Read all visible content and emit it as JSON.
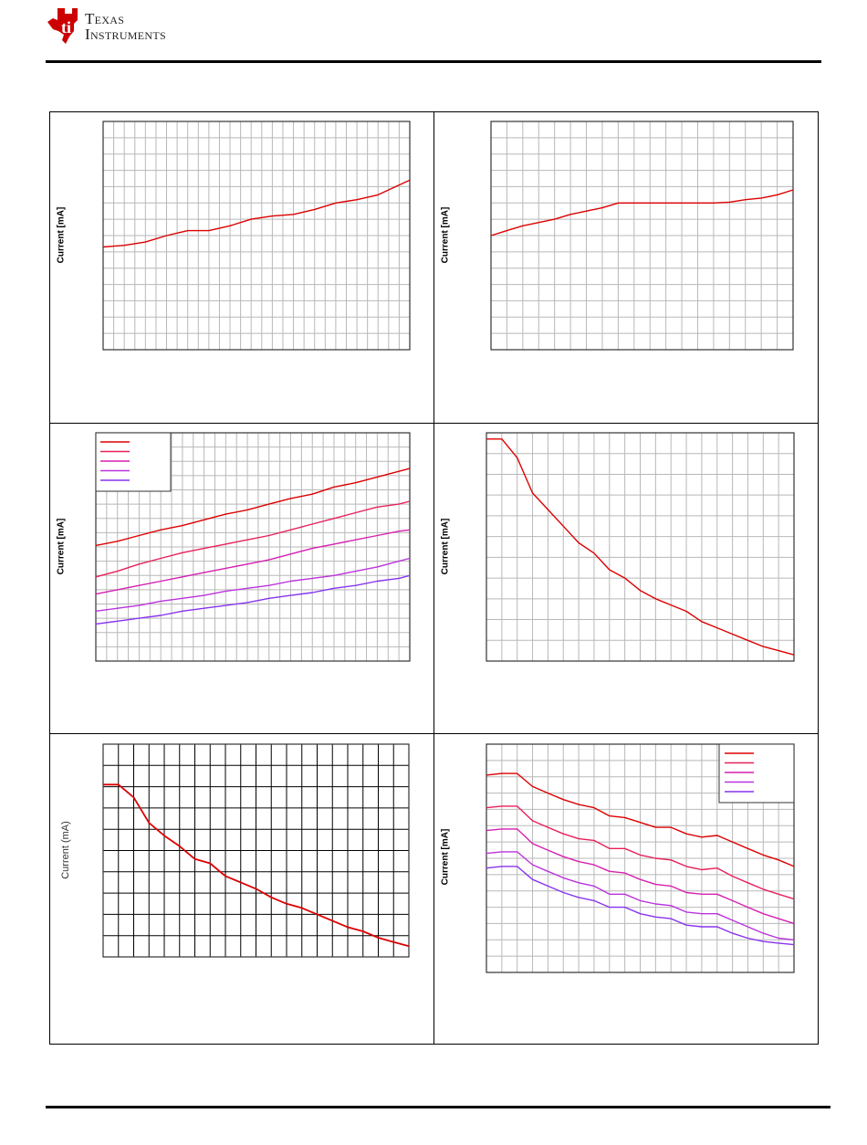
{
  "header": {
    "logo_line1": "Texas",
    "logo_line2": "Instruments",
    "logo_colors": {
      "brand": "#cc0000"
    }
  },
  "colors": {
    "series": [
      "#dd0000",
      "#e8205a",
      "#d61fb0",
      "#bb33dd",
      "#8833ee"
    ],
    "grid": "#b8b8b8",
    "grid_dark": "#000000"
  },
  "chart_data": [
    {
      "type": "line",
      "ylabel": "Current [mA]",
      "grid": true,
      "xlim": [
        0,
        29
      ],
      "ylim": [
        0,
        14
      ],
      "series": [
        {
          "x": [
            0,
            2,
            4,
            6,
            8,
            10,
            12,
            14,
            16,
            18,
            20,
            22,
            24,
            26,
            28,
            29
          ],
          "y": [
            6.3,
            6.4,
            6.6,
            7.0,
            7.3,
            7.3,
            7.6,
            8.0,
            8.2,
            8.3,
            8.6,
            9.0,
            9.2,
            9.5,
            10.1,
            10.4
          ]
        }
      ]
    },
    {
      "type": "line",
      "ylabel": "Current [mA]",
      "grid": true,
      "xlim": [
        0,
        19
      ],
      "ylim": [
        0,
        14
      ],
      "series": [
        {
          "x": [
            0,
            1,
            2,
            3,
            4,
            5,
            6,
            7,
            8,
            9,
            10,
            11,
            12,
            13,
            14,
            15,
            16,
            17,
            18,
            19
          ],
          "y": [
            7.0,
            7.3,
            7.6,
            7.8,
            8.0,
            8.3,
            8.5,
            8.7,
            9.0,
            9.0,
            9.0,
            9.0,
            9.0,
            9.0,
            9.0,
            9.05,
            9.2,
            9.3,
            9.5,
            9.8
          ]
        }
      ]
    },
    {
      "type": "line",
      "ylabel": "Current [mA]",
      "grid": true,
      "legend": "top-left",
      "xlim": [
        0,
        29
      ],
      "ylim": [
        0,
        16
      ],
      "series": [
        {
          "x": [
            0,
            2,
            4,
            6,
            8,
            10,
            12,
            14,
            16,
            18,
            20,
            22,
            24,
            26,
            28,
            29
          ],
          "y": [
            8.1,
            8.4,
            8.8,
            9.2,
            9.5,
            9.9,
            10.3,
            10.6,
            11.0,
            11.4,
            11.7,
            12.2,
            12.5,
            12.9,
            13.3,
            13.5
          ]
        },
        {
          "x": [
            0,
            2,
            4,
            6,
            8,
            10,
            12,
            14,
            16,
            18,
            20,
            22,
            24,
            26,
            28,
            29
          ],
          "y": [
            5.9,
            6.3,
            6.8,
            7.2,
            7.6,
            7.9,
            8.2,
            8.5,
            8.8,
            9.2,
            9.6,
            10.0,
            10.4,
            10.8,
            11.0,
            11.2
          ]
        },
        {
          "x": [
            0,
            2,
            4,
            6,
            8,
            10,
            12,
            14,
            16,
            18,
            20,
            22,
            24,
            26,
            28,
            29
          ],
          "y": [
            4.7,
            5.0,
            5.3,
            5.6,
            5.9,
            6.2,
            6.5,
            6.8,
            7.1,
            7.5,
            7.9,
            8.2,
            8.5,
            8.8,
            9.1,
            9.2
          ]
        },
        {
          "x": [
            0,
            2,
            4,
            6,
            8,
            10,
            12,
            14,
            16,
            18,
            20,
            22,
            24,
            26,
            28,
            29
          ],
          "y": [
            3.5,
            3.7,
            3.9,
            4.2,
            4.4,
            4.6,
            4.9,
            5.1,
            5.3,
            5.6,
            5.8,
            6.0,
            6.3,
            6.6,
            7.0,
            7.2
          ]
        },
        {
          "x": [
            0,
            2,
            4,
            6,
            8,
            10,
            12,
            14,
            16,
            18,
            20,
            22,
            24,
            26,
            28,
            29
          ],
          "y": [
            2.6,
            2.8,
            3.0,
            3.2,
            3.5,
            3.7,
            3.9,
            4.1,
            4.4,
            4.6,
            4.8,
            5.1,
            5.3,
            5.6,
            5.8,
            6.0
          ]
        }
      ]
    },
    {
      "type": "line",
      "ylabel": "Current [mA]",
      "grid": true,
      "xlim": [
        0,
        20
      ],
      "ylim": [
        0,
        11
      ],
      "series": [
        {
          "x": [
            0,
            1,
            2,
            3,
            4,
            5,
            6,
            7,
            8,
            9,
            10,
            11,
            12,
            13,
            14,
            15,
            16,
            17,
            18,
            19,
            20
          ],
          "y": [
            10.7,
            10.7,
            9.8,
            8.1,
            7.3,
            6.5,
            5.7,
            5.2,
            4.4,
            4.0,
            3.4,
            3.0,
            2.7,
            2.4,
            1.9,
            1.6,
            1.3,
            1.0,
            0.7,
            0.5,
            0.3
          ]
        }
      ]
    },
    {
      "type": "line",
      "ylabel": "Current (mA)",
      "grid": true,
      "xlim": [
        0,
        20
      ],
      "ylim": [
        0,
        10
      ],
      "series": [
        {
          "x": [
            0,
            1,
            2,
            3,
            4,
            5,
            6,
            7,
            8,
            9,
            10,
            11,
            12,
            13,
            14,
            15,
            16,
            17,
            18,
            19,
            20
          ],
          "y": [
            8.1,
            8.1,
            7.5,
            6.3,
            5.7,
            5.2,
            4.6,
            4.4,
            3.8,
            3.5,
            3.2,
            2.8,
            2.5,
            2.3,
            2.0,
            1.7,
            1.4,
            1.2,
            0.9,
            0.7,
            0.5
          ]
        }
      ]
    },
    {
      "type": "line",
      "ylabel": "Current [mA]",
      "grid": true,
      "legend": "top-right",
      "xlim": [
        0,
        20
      ],
      "ylim": [
        0,
        14
      ],
      "series": [
        {
          "x": [
            0,
            1,
            2,
            3,
            4,
            5,
            6,
            7,
            8,
            9,
            10,
            11,
            12,
            13,
            14,
            15,
            16,
            17,
            18,
            19,
            20
          ],
          "y": [
            12.1,
            12.2,
            12.2,
            11.4,
            11.0,
            10.6,
            10.3,
            10.1,
            9.6,
            9.5,
            9.2,
            8.9,
            8.9,
            8.5,
            8.3,
            8.4,
            8.0,
            7.6,
            7.2,
            6.9,
            6.5
          ]
        },
        {
          "x": [
            0,
            1,
            2,
            3,
            4,
            5,
            6,
            7,
            8,
            9,
            10,
            11,
            12,
            13,
            14,
            15,
            16,
            17,
            18,
            19,
            20
          ],
          "y": [
            10.1,
            10.2,
            10.2,
            9.3,
            8.9,
            8.5,
            8.2,
            8.1,
            7.6,
            7.6,
            7.2,
            7.0,
            6.9,
            6.5,
            6.3,
            6.4,
            5.9,
            5.5,
            5.1,
            4.8,
            4.5
          ]
        },
        {
          "x": [
            0,
            1,
            2,
            3,
            4,
            5,
            6,
            7,
            8,
            9,
            10,
            11,
            12,
            13,
            14,
            15,
            16,
            17,
            18,
            19,
            20
          ],
          "y": [
            8.7,
            8.8,
            8.8,
            7.9,
            7.5,
            7.1,
            6.8,
            6.6,
            6.2,
            6.1,
            5.7,
            5.4,
            5.3,
            4.9,
            4.8,
            4.8,
            4.4,
            4.0,
            3.6,
            3.3,
            3.0
          ]
        },
        {
          "x": [
            0,
            1,
            2,
            3,
            4,
            5,
            6,
            7,
            8,
            9,
            10,
            11,
            12,
            13,
            14,
            15,
            16,
            17,
            18,
            19,
            20
          ],
          "y": [
            7.3,
            7.4,
            7.4,
            6.6,
            6.2,
            5.8,
            5.5,
            5.3,
            4.8,
            4.8,
            4.4,
            4.2,
            4.1,
            3.7,
            3.6,
            3.6,
            3.2,
            2.8,
            2.4,
            2.1,
            2.0
          ]
        },
        {
          "x": [
            0,
            1,
            2,
            3,
            4,
            5,
            6,
            7,
            8,
            9,
            10,
            11,
            12,
            13,
            14,
            15,
            16,
            17,
            18,
            19,
            20
          ],
          "y": [
            6.4,
            6.5,
            6.5,
            5.7,
            5.3,
            4.9,
            4.6,
            4.4,
            4.0,
            4.0,
            3.6,
            3.4,
            3.3,
            2.9,
            2.8,
            2.8,
            2.4,
            2.1,
            1.9,
            1.8,
            1.7
          ]
        }
      ]
    }
  ]
}
